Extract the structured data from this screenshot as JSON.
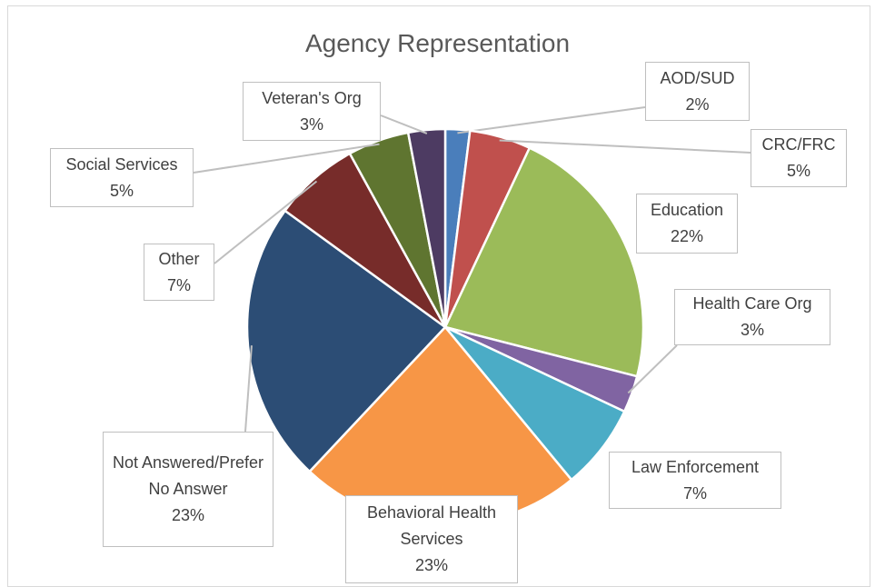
{
  "chart_data": {
    "type": "pie",
    "title": "Agency Representation",
    "categories": [
      "AOD/SUD",
      "CRC/FRC",
      "Education",
      "Health Care Org",
      "Law Enforcement",
      "Behavioral Health Services",
      "Not Answered/Prefer No Answer",
      "Other",
      "Social Services",
      "Veteran's Org"
    ],
    "values": [
      2,
      5,
      22,
      3,
      7,
      23,
      23,
      7,
      5,
      3
    ],
    "value_labels": [
      "2%",
      "5%",
      "22%",
      "3%",
      "7%",
      "23%",
      "23%",
      "7%",
      "5%",
      "3%"
    ],
    "colors": [
      "#4a7ebb",
      "#c0504d",
      "#9bbb59",
      "#8064a2",
      "#4bacc6",
      "#f79646",
      "#2c4d75",
      "#772c2a",
      "#5f7530",
      "#4d3b62"
    ]
  }
}
